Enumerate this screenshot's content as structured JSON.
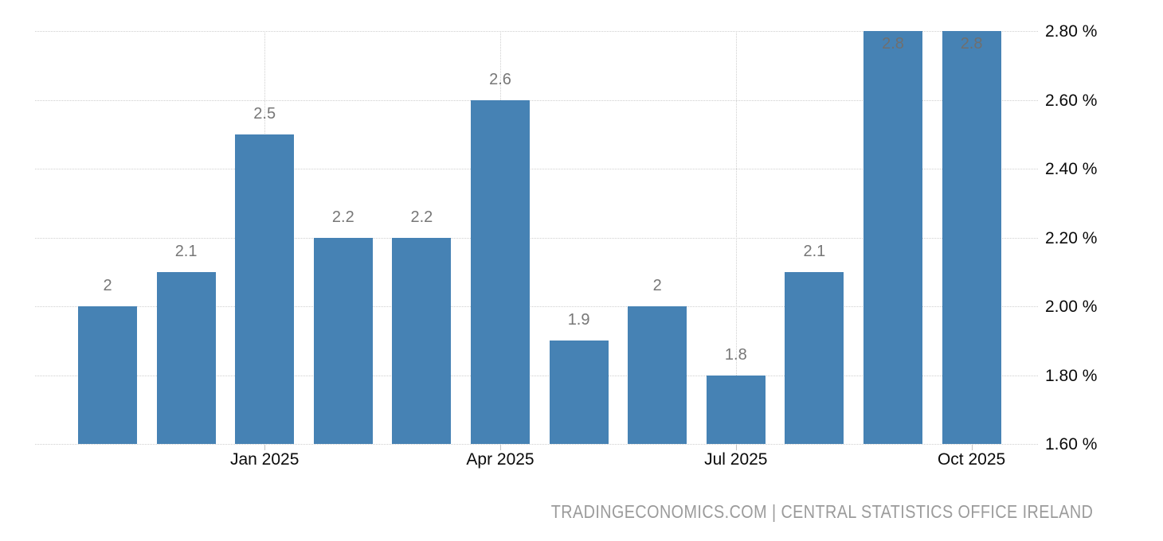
{
  "chart_data": {
    "type": "bar",
    "title": "",
    "unit": "%",
    "values": [
      2,
      2.1,
      2.5,
      2.2,
      2.2,
      2.6,
      1.9,
      2,
      1.8,
      2.1,
      2.8,
      2.8
    ],
    "bar_labels": [
      "2",
      "2.1",
      "2.5",
      "2.2",
      "2.2",
      "2.6",
      "1.9",
      "2",
      "1.8",
      "2.1",
      "2.8",
      "2.8"
    ],
    "x_ticks": [
      {
        "label": "Jan 2025",
        "bar_index": 2
      },
      {
        "label": "Apr 2025",
        "bar_index": 5
      },
      {
        "label": "Jul 2025",
        "bar_index": 8
      },
      {
        "label": "Oct 2025",
        "bar_index": 11
      }
    ],
    "y_ticks": [
      {
        "value": 2.8,
        "label": "2.80 %"
      },
      {
        "value": 2.6,
        "label": "2.60 %"
      },
      {
        "value": 2.4,
        "label": "2.40 %"
      },
      {
        "value": 2.2,
        "label": "2.20 %"
      },
      {
        "value": 2.0,
        "label": "2.00 %"
      },
      {
        "value": 1.8,
        "label": "1.80 %"
      },
      {
        "value": 1.6,
        "label": "1.60 %"
      }
    ],
    "ylim": [
      1.6,
      2.8
    ],
    "grid": true,
    "legend_position": "none",
    "colors": {
      "bar": "#4682b4",
      "value_label": "#777777",
      "value_label_inside": "#6f6f6f",
      "axis_text": "#0a0a0a",
      "gridline": "#cfcfcf"
    }
  },
  "footer": {
    "attribution": "TRADINGECONOMICS.COM | CENTRAL STATISTICS OFFICE IRELAND"
  }
}
